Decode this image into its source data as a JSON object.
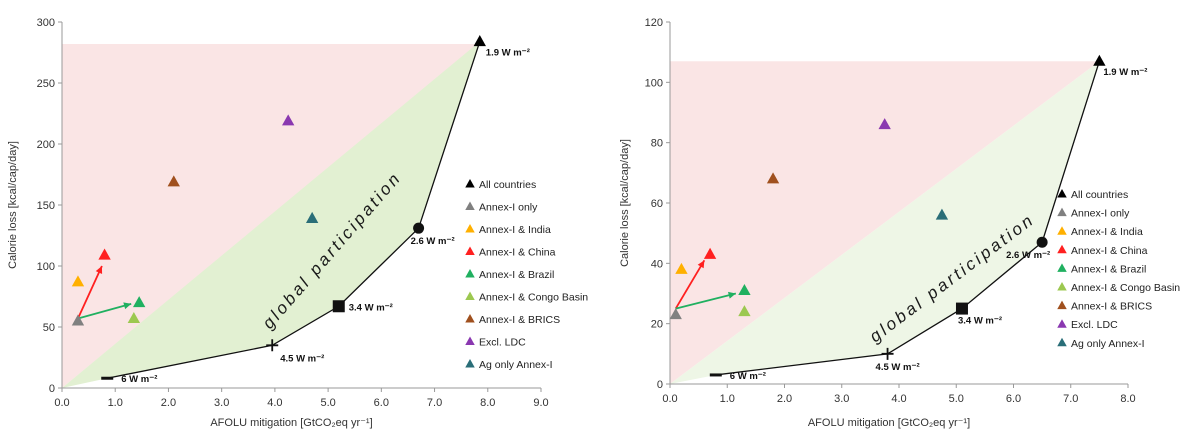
{
  "chart_data": [
    {
      "type": "scatter",
      "xlabel": "AFOLU mitigation [GtCO₂eq yr⁻¹]",
      "ylabel": "Calorie loss [kcal/cap/day]",
      "xlim": [
        0,
        9
      ],
      "ylim": [
        0,
        300
      ],
      "xticks": [
        "0.0",
        "1.0",
        "2.0",
        "3.0",
        "4.0",
        "5.0",
        "6.0",
        "7.0",
        "8.0",
        "9.0"
      ],
      "yticks": [
        "0",
        "50",
        "100",
        "150",
        "200",
        "250",
        "300"
      ],
      "annotation": "global participation",
      "frontier": [
        {
          "x": 0.85,
          "y": 8,
          "label": "6 W m⁻²",
          "marker": "dash"
        },
        {
          "x": 3.95,
          "y": 35,
          "label": "4.5 W m⁻²",
          "marker": "plus"
        },
        {
          "x": 5.2,
          "y": 67,
          "label": "3.4 W m⁻²",
          "marker": "square"
        },
        {
          "x": 6.7,
          "y": 131,
          "label": "2.6 W m⁻²",
          "marker": "circle"
        },
        {
          "x": 7.85,
          "y": 284,
          "label": "1.9 W m⁻²",
          "marker": "triangle"
        }
      ],
      "series": [
        {
          "name": "All countries",
          "color": "#000000",
          "x": 7.85,
          "y": 284
        },
        {
          "name": "Annex-I only",
          "color": "#808080",
          "x": 0.3,
          "y": 55
        },
        {
          "name": "Annex-I & India",
          "color": "#FFB000",
          "x": 0.3,
          "y": 87
        },
        {
          "name": "Annex-I & China",
          "color": "#FF2020",
          "x": 0.8,
          "y": 109
        },
        {
          "name": "Annex-I & Brazil",
          "color": "#20B060",
          "x": 1.45,
          "y": 70
        },
        {
          "name": "Annex-I & Congo Basin",
          "color": "#9CC850",
          "x": 1.35,
          "y": 57
        },
        {
          "name": "Annex-I & BRICS",
          "color": "#A0501E",
          "x": 2.1,
          "y": 169
        },
        {
          "name": "Excl. LDC",
          "color": "#8A38B0",
          "x": 4.25,
          "y": 219
        },
        {
          "name": "Ag only Annex-I",
          "color": "#2A6E78",
          "x": 4.7,
          "y": 139
        }
      ],
      "arrows": [
        {
          "from": [
            0.3,
            57
          ],
          "to": [
            0.75,
            100
          ],
          "color": "#FF2020"
        },
        {
          "from": [
            0.3,
            57
          ],
          "to": [
            1.3,
            69
          ],
          "color": "#20B060"
        }
      ],
      "shading": {
        "top": 282,
        "xmax": 7.85
      }
    },
    {
      "type": "scatter",
      "xlabel": "AFOLU mitigation [GtCO₂eq yr⁻¹]",
      "ylabel": "Calorie loss [kcal/cap/day]",
      "xlim": [
        0,
        8
      ],
      "ylim": [
        0,
        120
      ],
      "xticks": [
        "0.0",
        "1.0",
        "2.0",
        "3.0",
        "4.0",
        "5.0",
        "6.0",
        "7.0",
        "8.0"
      ],
      "yticks": [
        "0",
        "20",
        "40",
        "60",
        "80",
        "100",
        "120"
      ],
      "annotation": "global participation",
      "frontier": [
        {
          "x": 0.8,
          "y": 3,
          "label": "6 W m⁻²",
          "marker": "dash"
        },
        {
          "x": 3.8,
          "y": 10,
          "label": "4.5 W m⁻²",
          "marker": "plus"
        },
        {
          "x": 5.1,
          "y": 25,
          "label": "3.4 W m⁻²",
          "marker": "square"
        },
        {
          "x": 6.5,
          "y": 47,
          "label": "2.6 W m⁻²",
          "marker": "circle"
        },
        {
          "x": 7.5,
          "y": 107,
          "label": "1.9 W m⁻²",
          "marker": "triangle"
        }
      ],
      "series": [
        {
          "name": "All countries",
          "color": "#000000",
          "x": 7.5,
          "y": 107
        },
        {
          "name": "Annex-I only",
          "color": "#808080",
          "x": 0.1,
          "y": 23
        },
        {
          "name": "Annex-I & India",
          "color": "#FFB000",
          "x": 0.2,
          "y": 38
        },
        {
          "name": "Annex-I & China",
          "color": "#FF2020",
          "x": 0.7,
          "y": 43
        },
        {
          "name": "Annex-I & Brazil",
          "color": "#20B060",
          "x": 1.3,
          "y": 31
        },
        {
          "name": "Annex-I & Congo Basin",
          "color": "#9CC850",
          "x": 1.3,
          "y": 24
        },
        {
          "name": "Annex-I & BRICS",
          "color": "#A0501E",
          "x": 1.8,
          "y": 68
        },
        {
          "name": "Excl. LDC",
          "color": "#8A38B0",
          "x": 3.75,
          "y": 86
        },
        {
          "name": "Ag only Annex-I",
          "color": "#2A6E78",
          "x": 4.75,
          "y": 56
        }
      ],
      "arrows": [
        {
          "from": [
            0.1,
            25
          ],
          "to": [
            0.6,
            41
          ],
          "color": "#FF2020"
        },
        {
          "from": [
            0.1,
            25
          ],
          "to": [
            1.15,
            30
          ],
          "color": "#20B060"
        }
      ],
      "shading": {
        "top": 107,
        "xmax": 7.5
      }
    }
  ]
}
